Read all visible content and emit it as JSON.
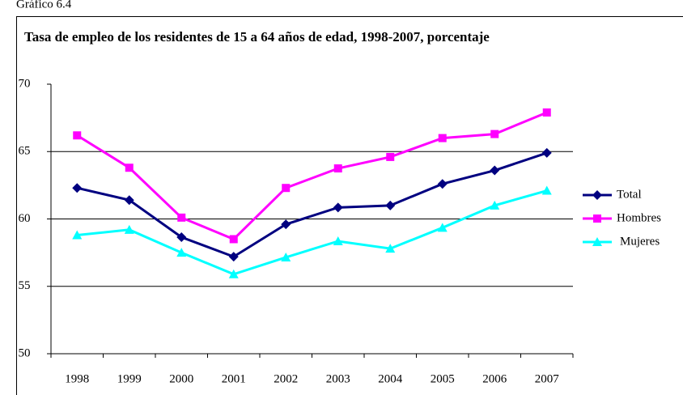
{
  "chart_data": {
    "type": "line",
    "label": "Gráfico 6.4",
    "title": "Tasa de empleo de los residentes de 15 a 64 años de edad, 1998-2007, porcentaje",
    "categories": [
      "1998",
      "1999",
      "2000",
      "2001",
      "2002",
      "2003",
      "2004",
      "2005",
      "2006",
      "2007"
    ],
    "series": [
      {
        "name": "Total",
        "color": "#000080",
        "marker": "diamond",
        "values": [
          62.3,
          61.4,
          58.65,
          57.2,
          59.6,
          60.85,
          61.0,
          62.6,
          63.6,
          64.9
        ]
      },
      {
        "name": "Hombres",
        "color": "#ff00ff",
        "marker": "square",
        "values": [
          66.2,
          63.8,
          60.1,
          58.5,
          62.3,
          63.75,
          64.6,
          66.0,
          66.3,
          67.9
        ]
      },
      {
        "name": "Mujeres",
        "color": "#00ffff",
        "marker": "triangle",
        "values": [
          58.8,
          59.2,
          57.5,
          55.9,
          57.15,
          58.35,
          57.8,
          59.35,
          61.0,
          62.1
        ]
      }
    ],
    "ylim": [
      50,
      70
    ],
    "yticks": [
      50,
      55,
      60,
      65,
      70
    ],
    "grid": true,
    "legend": "right"
  }
}
